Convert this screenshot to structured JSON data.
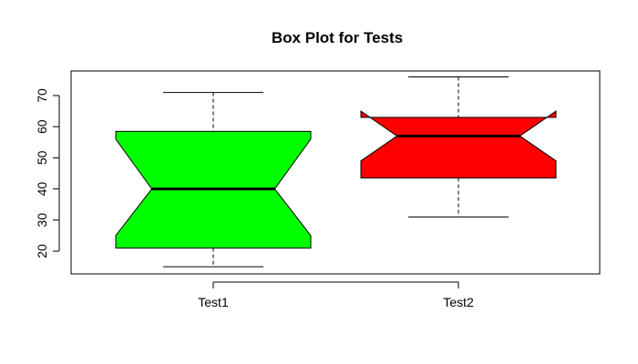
{
  "chart_data": {
    "type": "boxplot",
    "title": "Box Plot for Tests",
    "xlabel": "",
    "ylabel": "",
    "categories": [
      "Test1",
      "Test2"
    ],
    "notched": true,
    "ylim": [
      12,
      79
    ],
    "yticks": [
      20,
      30,
      40,
      50,
      60,
      70
    ],
    "grid": false,
    "legend": "none",
    "boxes": [
      {
        "category": "Test1",
        "whisker_low": 15,
        "q1": 21,
        "median": 40,
        "q3": 58.5,
        "whisker_high": 71,
        "notch_low": 25,
        "notch_high": 56,
        "color": "#00ff00"
      },
      {
        "category": "Test2",
        "whisker_low": 31,
        "q1": 43.5,
        "median": 57,
        "q3": 63,
        "whisker_high": 76,
        "notch_low": 49,
        "notch_high": 65,
        "color": "#ff0000"
      }
    ]
  }
}
